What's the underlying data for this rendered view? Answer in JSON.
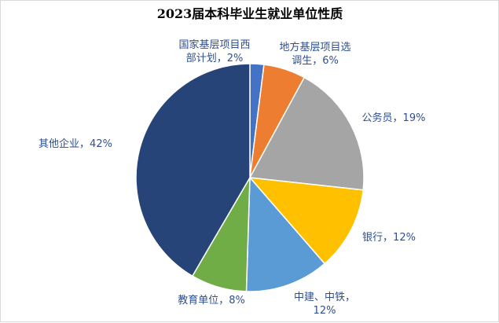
{
  "chart_data": {
    "type": "pie",
    "title": "2023届本科毕业生就业单位性质",
    "slices": [
      {
        "label_lines": [
          "国家基层项目西",
          "部计划，2%"
        ],
        "value": 2,
        "color": "#4472c4"
      },
      {
        "label_lines": [
          "地方基层项目选",
          "调生，6%"
        ],
        "value": 6,
        "color": "#ed7d31"
      },
      {
        "label_lines": [
          "公务员，19%"
        ],
        "value": 19,
        "color": "#a5a5a5"
      },
      {
        "label_lines": [
          "银行，12%"
        ],
        "value": 12,
        "color": "#ffc000"
      },
      {
        "label_lines": [
          "中建、中铁，",
          "12%"
        ],
        "value": 12,
        "color": "#5b9bd5"
      },
      {
        "label_lines": [
          "教育单位，8%"
        ],
        "value": 8,
        "color": "#70ad47"
      },
      {
        "label_lines": [
          "其他企业，42%"
        ],
        "value": 42,
        "color": "#264478"
      }
    ]
  }
}
